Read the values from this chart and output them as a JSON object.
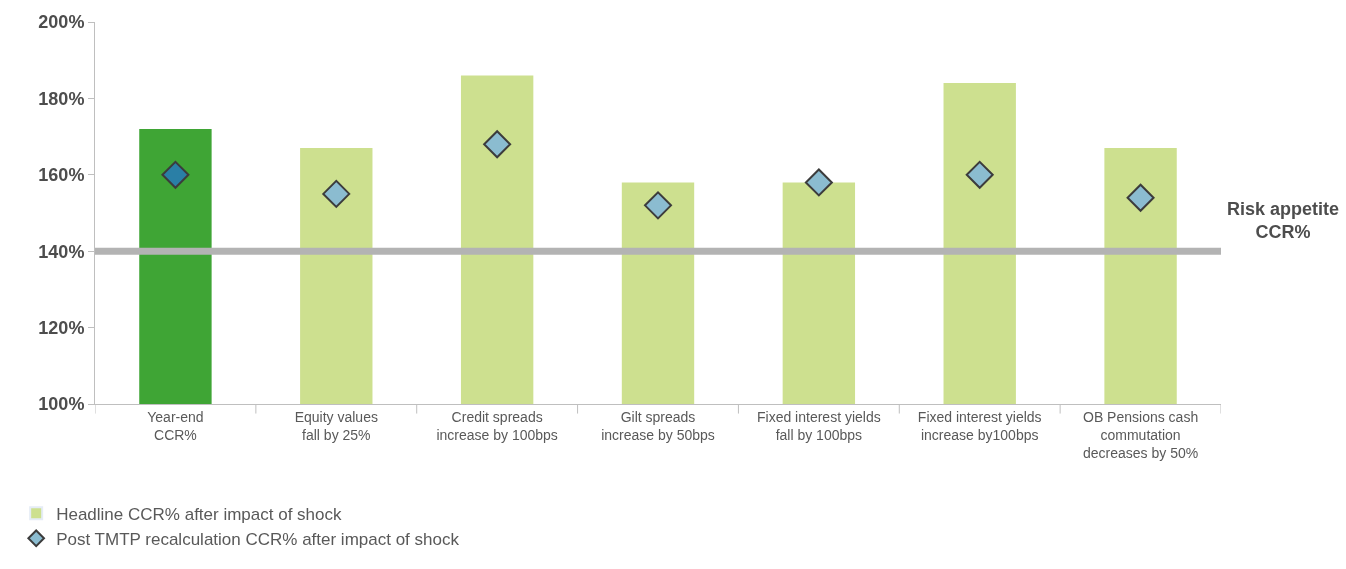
{
  "chart_data": {
    "type": "bar",
    "categories": [
      "Year-end\nCCR%",
      "Equity values\nfall by 25%",
      "Credit spreads\nincrease by 100bps",
      "Gilt spreads\nincrease by 50bps",
      "Fixed interest yields\nfall by 100bps",
      "Fixed interest yields\nincrease by100bps",
      "OB Pensions cash\ncommutation\ndecreases by 50%"
    ],
    "series": [
      {
        "name": "Headline CCR% after impact of shock",
        "color": "#cde08f",
        "colors": [
          "#3fa535",
          "#cde08f",
          "#cde08f",
          "#cde08f",
          "#cde08f",
          "#cde08f",
          "#cde08f"
        ],
        "values": [
          172,
          167,
          186,
          158,
          158,
          184,
          167
        ]
      },
      {
        "name": "Post TMTP recalculation CCR% after impact of shock",
        "type": "scatter",
        "marker": "diamond",
        "color": "#8bbcd0",
        "colors": [
          "#2a7fa6",
          "#8bbcd0",
          "#8bbcd0",
          "#8bbcd0",
          "#8bbcd0",
          "#8bbcd0",
          "#8bbcd0"
        ],
        "values": [
          160,
          155,
          168,
          152,
          158,
          160,
          154
        ]
      }
    ],
    "ylim": [
      100,
      200
    ],
    "yticks": [
      {
        "value": 100,
        "label": "100%"
      },
      {
        "value": 120,
        "label": "120%"
      },
      {
        "value": 140,
        "label": "140%"
      },
      {
        "value": 160,
        "label": "160%"
      },
      {
        "value": 180,
        "label": "180%"
      },
      {
        "value": 200,
        "label": "200%"
      }
    ],
    "ref_lines": [
      {
        "axis": "y",
        "value": 140,
        "label": "Risk appetite\nCCR%",
        "color": "#b3b3b3"
      }
    ],
    "legend": "bottom left"
  }
}
